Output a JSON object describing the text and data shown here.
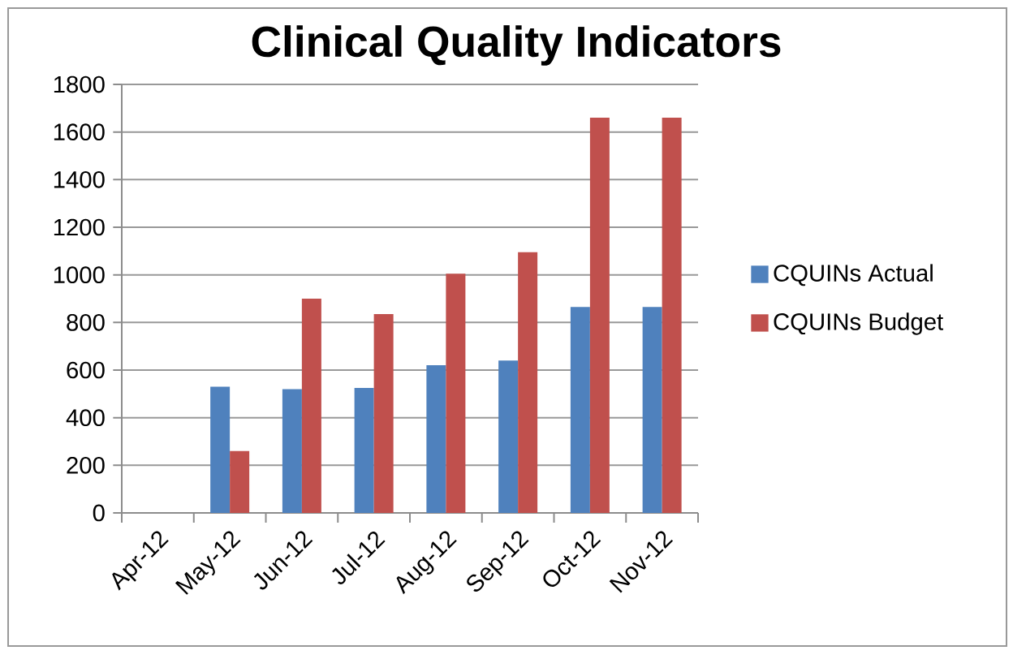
{
  "chart_data": {
    "type": "bar",
    "title": "Clinical Quality Indicators",
    "categories": [
      "Apr-12",
      "May-12",
      "Jun-12",
      "Jul-12",
      "Aug-12",
      "Sep-12",
      "Oct-12",
      "Nov-12"
    ],
    "series": [
      {
        "name": "CQUINs Actual",
        "color": "#4f81bd",
        "values": [
          null,
          530,
          520,
          525,
          620,
          640,
          865,
          865
        ]
      },
      {
        "name": "CQUINs Budget",
        "color": "#c0504d",
        "values": [
          null,
          260,
          900,
          835,
          1005,
          1095,
          1660,
          1660
        ]
      }
    ],
    "ylim": [
      0,
      1800
    ],
    "yticks": [
      0,
      200,
      400,
      600,
      800,
      1000,
      1200,
      1400,
      1600,
      1800
    ],
    "grid": "y",
    "legend": "right"
  }
}
